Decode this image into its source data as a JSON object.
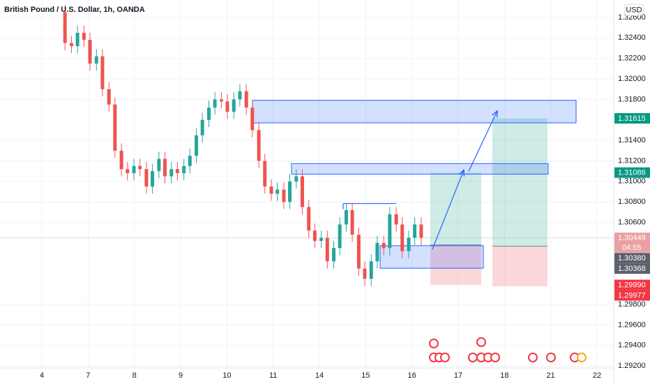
{
  "chart_data": {
    "type": "candlestick",
    "title": "British Pound / U.S. Dollar, 1h, OANDA",
    "currency": "USD",
    "xlim": [
      -0.905,
      12.362
    ],
    "ylim": [
      1.2918,
      1.3277
    ],
    "grid": true,
    "up_color": "#26a69a",
    "down_color": "#ef5350",
    "xticks": [
      {
        "value": 0,
        "label": "4"
      },
      {
        "value": 1,
        "label": "7"
      },
      {
        "value": 2,
        "label": "8"
      },
      {
        "value": 3,
        "label": "9"
      },
      {
        "value": 4,
        "label": "10"
      },
      {
        "value": 5,
        "label": "11"
      },
      {
        "value": 6,
        "label": "14"
      },
      {
        "value": 7,
        "label": "15"
      },
      {
        "value": 8,
        "label": "16"
      },
      {
        "value": 9,
        "label": "17"
      },
      {
        "value": 10,
        "label": "18"
      },
      {
        "value": 11,
        "label": "21"
      },
      {
        "value": 12,
        "label": "22"
      }
    ],
    "yticks": [
      {
        "value": 1.326,
        "label": "1.32600"
      },
      {
        "value": 1.324,
        "label": "1.32400"
      },
      {
        "value": 1.322,
        "label": "1.32200"
      },
      {
        "value": 1.32,
        "label": "1.32000"
      },
      {
        "value": 1.318,
        "label": "1.31800"
      },
      {
        "value": 1.314,
        "label": "1.31400"
      },
      {
        "value": 1.312,
        "label": "1.31200"
      },
      {
        "value": 1.31,
        "label": "1.31000"
      },
      {
        "value": 1.308,
        "label": "1.30800"
      },
      {
        "value": 1.306,
        "label": "1.30600"
      },
      {
        "value": 1.298,
        "label": "1.29800"
      },
      {
        "value": 1.296,
        "label": "1.29600"
      },
      {
        "value": 1.294,
        "label": "1.29400"
      },
      {
        "value": 1.292,
        "label": "1.29200"
      }
    ],
    "x": [
      0.5,
      0.64,
      0.77,
      0.91,
      1.04,
      1.18,
      1.31,
      1.45,
      1.58,
      1.72,
      1.85,
      1.99,
      2.12,
      2.26,
      2.39,
      2.53,
      2.66,
      2.8,
      2.93,
      3.07,
      3.2,
      3.34,
      3.47,
      3.61,
      3.74,
      3.88,
      4.01,
      4.15,
      4.28,
      4.42,
      4.55,
      4.69,
      4.82,
      4.96,
      5.09,
      5.23,
      5.36,
      5.5,
      5.63,
      5.77,
      5.9,
      6.04,
      6.17,
      6.31,
      6.44,
      6.58,
      6.71,
      6.85,
      6.98,
      7.12,
      7.25,
      7.39,
      7.52,
      7.66,
      7.79,
      7.93,
      8.06,
      8.2
    ],
    "open": [
      1.3265,
      1.3235,
      1.3232,
      1.3245,
      1.3238,
      1.3215,
      1.3222,
      1.319,
      1.3175,
      1.313,
      1.3112,
      1.3108,
      1.3115,
      1.3112,
      1.3095,
      1.311,
      1.3122,
      1.3105,
      1.3112,
      1.3108,
      1.3115,
      1.3125,
      1.3145,
      1.316,
      1.3172,
      1.318,
      1.3178,
      1.3168,
      1.318,
      1.3188,
      1.3172,
      1.315,
      1.312,
      1.3095,
      1.3088,
      1.3092,
      1.308,
      1.31,
      1.3105,
      1.3075,
      1.3052,
      1.3042,
      1.3045,
      1.3022,
      1.3035,
      1.3058,
      1.3072,
      1.3048,
      1.3015,
      1.3005,
      1.3022,
      1.304,
      1.3035,
      1.3068,
      1.3058,
      1.3032,
      1.3045,
      1.3058
    ],
    "high": [
      1.3272,
      1.3242,
      1.3252,
      1.3252,
      1.3245,
      1.3229,
      1.3229,
      1.3197,
      1.3182,
      1.3137,
      1.3119,
      1.3122,
      1.3122,
      1.3119,
      1.3117,
      1.3129,
      1.3129,
      1.3119,
      1.3119,
      1.3122,
      1.3132,
      1.3152,
      1.3167,
      1.3179,
      1.3187,
      1.3187,
      1.3185,
      1.3187,
      1.3195,
      1.3195,
      1.3179,
      1.3157,
      1.3127,
      1.3102,
      1.3099,
      1.3099,
      1.3107,
      1.3112,
      1.3112,
      1.3082,
      1.3059,
      1.3052,
      1.3052,
      1.3042,
      1.3065,
      1.3079,
      1.3079,
      1.3055,
      1.3022,
      1.3029,
      1.3047,
      1.3047,
      1.3075,
      1.3075,
      1.3065,
      1.3052,
      1.3065,
      1.3065
    ],
    "low": [
      1.3228,
      1.3225,
      1.3225,
      1.3231,
      1.3208,
      1.3208,
      1.3183,
      1.3168,
      1.3123,
      1.3105,
      1.3101,
      1.3101,
      1.3105,
      1.3088,
      1.3088,
      1.3103,
      1.3098,
      1.3098,
      1.3101,
      1.3101,
      1.3108,
      1.3118,
      1.3138,
      1.3153,
      1.3165,
      1.3171,
      1.3161,
      1.3161,
      1.3173,
      1.3165,
      1.3143,
      1.3113,
      1.3088,
      1.3081,
      1.3081,
      1.3073,
      1.3073,
      1.3093,
      1.3068,
      1.3045,
      1.3035,
      1.3035,
      1.3015,
      1.3015,
      1.3028,
      1.3051,
      1.3041,
      1.3008,
      1.2998,
      1.2998,
      1.3015,
      1.3028,
      1.3028,
      1.3051,
      1.3025,
      1.3025,
      1.3038,
      1.3038
    ],
    "close": [
      1.3235,
      1.3232,
      1.3245,
      1.3238,
      1.3215,
      1.3222,
      1.319,
      1.3175,
      1.313,
      1.3112,
      1.3108,
      1.3115,
      1.3112,
      1.3095,
      1.311,
      1.3122,
      1.3105,
      1.3112,
      1.3108,
      1.3115,
      1.3125,
      1.3145,
      1.316,
      1.3172,
      1.318,
      1.3178,
      1.3168,
      1.318,
      1.3188,
      1.3172,
      1.315,
      1.312,
      1.3095,
      1.3088,
      1.3092,
      1.308,
      1.31,
      1.3105,
      1.3075,
      1.3052,
      1.3042,
      1.3045,
      1.3022,
      1.3035,
      1.3058,
      1.3072,
      1.3048,
      1.3015,
      1.3005,
      1.3022,
      1.304,
      1.3035,
      1.3068,
      1.3058,
      1.3032,
      1.3045,
      1.3058,
      1.3045
    ],
    "last_price": 1.30449,
    "zones": [
      {
        "x": [
          4.553,
          11.548
        ],
        "y": [
          1.31791,
          1.31571
        ]
      },
      {
        "x": [
          5.397,
          10.945
        ],
        "y": [
          1.31174,
          1.31071
        ]
      },
      {
        "x": [
          7.312,
          9.543
        ],
        "y": [
          1.30373,
          1.30153
        ]
      }
    ],
    "level_line": {
      "x": [
        6.513,
        7.659
      ],
      "y": 1.30784
    },
    "positions": [
      {
        "x": [
          8.397,
          9.498
        ],
        "entry": 1.3038,
        "target": 1.31086,
        "stop": 1.2999
      },
      {
        "x": [
          9.739,
          10.93
        ],
        "entry": 1.30368,
        "target": 1.31615,
        "stop": 1.29977
      }
    ],
    "arrows": [
      {
        "x": [
          8.442,
          9.121
        ],
        "y": [
          1.30338,
          1.31112
        ]
      },
      {
        "x": [
          9.226,
          9.844
        ],
        "y": [
          1.31098,
          1.31688
        ]
      }
    ],
    "badges": [
      {
        "value": 1.31615,
        "label": "1.31615",
        "color": "#089981"
      },
      {
        "value": 1.31086,
        "label": "1.31086",
        "color": "#089981"
      },
      {
        "value": 1.30449,
        "label": "1.30449",
        "color": "#e8a1a0",
        "sub": "04:55"
      },
      {
        "value": 1.3038,
        "label": "1.30380",
        "color": "#5d606b"
      },
      {
        "value": 1.30368,
        "label": "1.30368",
        "color": "#5d606b"
      },
      {
        "value": 1.2999,
        "label": "1.29990",
        "color": "#f23645"
      },
      {
        "value": 1.29977,
        "label": "1.29977",
        "color": "#f23645"
      }
    ]
  }
}
